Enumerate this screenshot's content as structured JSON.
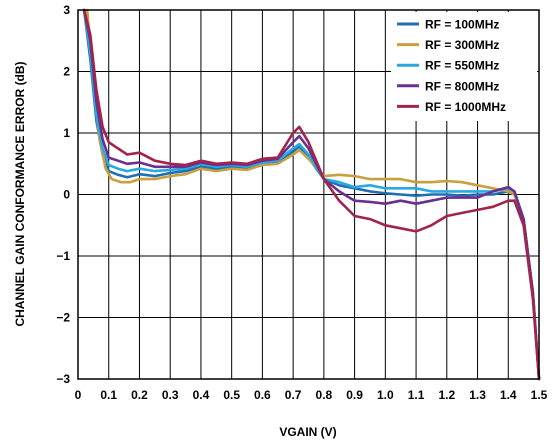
{
  "chart_data": {
    "type": "line",
    "title": "",
    "xlabel": "VGAIN (V)",
    "ylabel": "CHANNEL GAIN CONFORMANCE ERROR (dB)",
    "xlim": [
      0,
      1.5
    ],
    "ylim": [
      -3,
      3
    ],
    "xticks": [
      "0",
      "0.1",
      "0.2",
      "0.3",
      "0.4",
      "0.5",
      "0.6",
      "0.7",
      "0.8",
      "0.9",
      "1.0",
      "1.1",
      "1.2",
      "1.3",
      "1.4",
      "1.5"
    ],
    "yticks": [
      "3",
      "2",
      "1",
      "0",
      "−1",
      "−2",
      "−3"
    ],
    "grid": true,
    "legend_position": "top-right",
    "series": [
      {
        "name": "RF = 100MHz",
        "color": "#1f6fb2",
        "points": [
          [
            0.02,
            3.0
          ],
          [
            0.04,
            2.2
          ],
          [
            0.06,
            1.2
          ],
          [
            0.08,
            0.65
          ],
          [
            0.1,
            0.38
          ],
          [
            0.13,
            0.32
          ],
          [
            0.16,
            0.28
          ],
          [
            0.2,
            0.33
          ],
          [
            0.25,
            0.3
          ],
          [
            0.3,
            0.35
          ],
          [
            0.35,
            0.38
          ],
          [
            0.4,
            0.45
          ],
          [
            0.45,
            0.42
          ],
          [
            0.5,
            0.45
          ],
          [
            0.55,
            0.43
          ],
          [
            0.6,
            0.5
          ],
          [
            0.65,
            0.52
          ],
          [
            0.7,
            0.7
          ],
          [
            0.72,
            0.78
          ],
          [
            0.75,
            0.6
          ],
          [
            0.8,
            0.25
          ],
          [
            0.85,
            0.15
          ],
          [
            0.9,
            0.1
          ],
          [
            0.95,
            0.05
          ],
          [
            1.0,
            0.02
          ],
          [
            1.05,
            0.0
          ],
          [
            1.1,
            -0.02
          ],
          [
            1.15,
            0.0
          ],
          [
            1.2,
            0.0
          ],
          [
            1.25,
            -0.02
          ],
          [
            1.3,
            0.0
          ],
          [
            1.35,
            0.0
          ],
          [
            1.4,
            0.05
          ],
          [
            1.42,
            0.0
          ],
          [
            1.45,
            -0.4
          ],
          [
            1.48,
            -1.6
          ],
          [
            1.5,
            -3.0
          ]
        ]
      },
      {
        "name": "RF = 300MHz",
        "color": "#c8a040",
        "points": [
          [
            0.03,
            3.0
          ],
          [
            0.05,
            1.8
          ],
          [
            0.07,
            0.9
          ],
          [
            0.09,
            0.42
          ],
          [
            0.11,
            0.25
          ],
          [
            0.14,
            0.2
          ],
          [
            0.17,
            0.2
          ],
          [
            0.2,
            0.25
          ],
          [
            0.25,
            0.25
          ],
          [
            0.3,
            0.3
          ],
          [
            0.35,
            0.33
          ],
          [
            0.4,
            0.42
          ],
          [
            0.45,
            0.38
          ],
          [
            0.5,
            0.42
          ],
          [
            0.55,
            0.4
          ],
          [
            0.6,
            0.48
          ],
          [
            0.65,
            0.5
          ],
          [
            0.7,
            0.65
          ],
          [
            0.72,
            0.72
          ],
          [
            0.75,
            0.58
          ],
          [
            0.8,
            0.3
          ],
          [
            0.85,
            0.32
          ],
          [
            0.9,
            0.3
          ],
          [
            0.95,
            0.25
          ],
          [
            1.0,
            0.25
          ],
          [
            1.05,
            0.25
          ],
          [
            1.1,
            0.2
          ],
          [
            1.15,
            0.2
          ],
          [
            1.2,
            0.22
          ],
          [
            1.25,
            0.2
          ],
          [
            1.3,
            0.15
          ],
          [
            1.35,
            0.1
          ],
          [
            1.4,
            0.05
          ],
          [
            1.42,
            0.0
          ],
          [
            1.45,
            -0.4
          ],
          [
            1.48,
            -1.6
          ],
          [
            1.5,
            -3.0
          ]
        ]
      },
      {
        "name": "RF = 550MHz",
        "color": "#29a9e0",
        "points": [
          [
            0.02,
            3.0
          ],
          [
            0.04,
            2.3
          ],
          [
            0.06,
            1.3
          ],
          [
            0.08,
            0.75
          ],
          [
            0.1,
            0.48
          ],
          [
            0.13,
            0.42
          ],
          [
            0.16,
            0.38
          ],
          [
            0.2,
            0.42
          ],
          [
            0.25,
            0.38
          ],
          [
            0.3,
            0.4
          ],
          [
            0.35,
            0.42
          ],
          [
            0.4,
            0.5
          ],
          [
            0.45,
            0.45
          ],
          [
            0.5,
            0.48
          ],
          [
            0.55,
            0.45
          ],
          [
            0.6,
            0.52
          ],
          [
            0.65,
            0.55
          ],
          [
            0.7,
            0.75
          ],
          [
            0.72,
            0.82
          ],
          [
            0.75,
            0.65
          ],
          [
            0.8,
            0.25
          ],
          [
            0.85,
            0.2
          ],
          [
            0.9,
            0.12
          ],
          [
            0.95,
            0.15
          ],
          [
            1.0,
            0.1
          ],
          [
            1.05,
            0.1
          ],
          [
            1.1,
            0.1
          ],
          [
            1.15,
            0.05
          ],
          [
            1.2,
            0.05
          ],
          [
            1.25,
            0.05
          ],
          [
            1.3,
            0.05
          ],
          [
            1.35,
            0.05
          ],
          [
            1.4,
            0.1
          ],
          [
            1.42,
            0.05
          ],
          [
            1.45,
            -0.4
          ],
          [
            1.48,
            -1.6
          ],
          [
            1.5,
            -3.0
          ]
        ]
      },
      {
        "name": "RF = 800MHz",
        "color": "#6b2f8f",
        "points": [
          [
            0.02,
            3.0
          ],
          [
            0.04,
            2.5
          ],
          [
            0.06,
            1.5
          ],
          [
            0.08,
            0.9
          ],
          [
            0.1,
            0.6
          ],
          [
            0.13,
            0.55
          ],
          [
            0.16,
            0.5
          ],
          [
            0.2,
            0.52
          ],
          [
            0.25,
            0.45
          ],
          [
            0.3,
            0.45
          ],
          [
            0.35,
            0.45
          ],
          [
            0.4,
            0.52
          ],
          [
            0.45,
            0.48
          ],
          [
            0.5,
            0.5
          ],
          [
            0.55,
            0.48
          ],
          [
            0.6,
            0.55
          ],
          [
            0.65,
            0.58
          ],
          [
            0.7,
            0.85
          ],
          [
            0.72,
            0.95
          ],
          [
            0.75,
            0.75
          ],
          [
            0.8,
            0.25
          ],
          [
            0.85,
            0.05
          ],
          [
            0.9,
            -0.1
          ],
          [
            0.95,
            -0.12
          ],
          [
            1.0,
            -0.15
          ],
          [
            1.05,
            -0.1
          ],
          [
            1.1,
            -0.15
          ],
          [
            1.15,
            -0.1
          ],
          [
            1.2,
            -0.05
          ],
          [
            1.25,
            -0.05
          ],
          [
            1.3,
            -0.05
          ],
          [
            1.35,
            0.05
          ],
          [
            1.4,
            0.12
          ],
          [
            1.42,
            0.05
          ],
          [
            1.45,
            -0.4
          ],
          [
            1.48,
            -1.6
          ],
          [
            1.5,
            -3.0
          ]
        ]
      },
      {
        "name": "RF = 1000MHz",
        "color": "#a3244a",
        "points": [
          [
            0.02,
            3.0
          ],
          [
            0.04,
            2.6
          ],
          [
            0.06,
            1.7
          ],
          [
            0.08,
            1.1
          ],
          [
            0.1,
            0.85
          ],
          [
            0.13,
            0.75
          ],
          [
            0.16,
            0.65
          ],
          [
            0.2,
            0.68
          ],
          [
            0.25,
            0.55
          ],
          [
            0.3,
            0.5
          ],
          [
            0.35,
            0.48
          ],
          [
            0.4,
            0.55
          ],
          [
            0.45,
            0.5
          ],
          [
            0.5,
            0.52
          ],
          [
            0.55,
            0.5
          ],
          [
            0.6,
            0.58
          ],
          [
            0.65,
            0.6
          ],
          [
            0.7,
            1.0
          ],
          [
            0.72,
            1.1
          ],
          [
            0.75,
            0.85
          ],
          [
            0.8,
            0.25
          ],
          [
            0.85,
            -0.1
          ],
          [
            0.9,
            -0.35
          ],
          [
            0.95,
            -0.4
          ],
          [
            1.0,
            -0.5
          ],
          [
            1.05,
            -0.55
          ],
          [
            1.1,
            -0.6
          ],
          [
            1.15,
            -0.5
          ],
          [
            1.2,
            -0.35
          ],
          [
            1.25,
            -0.3
          ],
          [
            1.3,
            -0.25
          ],
          [
            1.35,
            -0.2
          ],
          [
            1.4,
            -0.1
          ],
          [
            1.42,
            -0.1
          ],
          [
            1.45,
            -0.5
          ],
          [
            1.48,
            -1.7
          ],
          [
            1.5,
            -3.0
          ]
        ]
      }
    ]
  }
}
